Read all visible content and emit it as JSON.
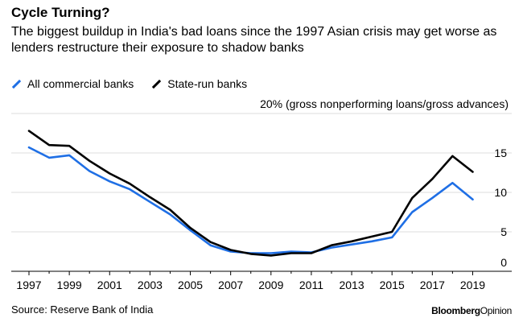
{
  "header": {
    "title": "Cycle Turning?",
    "subtitle": "The biggest buildup in India's bad loans since the 1997 Asian crisis may get worse as lenders restructure their exposure to shadow banks"
  },
  "footer": {
    "source": "Source: Reserve Bank of India",
    "brand_part1": "Bloomberg",
    "brand_part2": "Opinion"
  },
  "chart_data": {
    "type": "line",
    "title": "Cycle Turning?",
    "subtitle": "The biggest buildup in India's bad loans since the 1997 Asian crisis may get worse as lenders restructure their exposure to shadow banks",
    "ylabel": "20% (gross nonperforming loans/gross advances)",
    "ylim": [
      0,
      20
    ],
    "yticks": [
      0,
      5,
      10,
      15
    ],
    "xlim": [
      1997,
      2019.5
    ],
    "xticks": [
      1997,
      1999,
      2001,
      2003,
      2005,
      2007,
      2009,
      2011,
      2013,
      2015,
      2017,
      2019
    ],
    "grid": true,
    "legend_position": "top-left",
    "x": [
      1997,
      1998,
      1999,
      2000,
      2001,
      2002,
      2003,
      2004,
      2005,
      2006,
      2007,
      2008,
      2009,
      2010,
      2011,
      2012,
      2013,
      2014,
      2015,
      2016,
      2017,
      2018,
      2019
    ],
    "series": [
      {
        "name": "All commercial banks",
        "color": "#1f6fe5",
        "values": [
          15.7,
          14.4,
          14.7,
          12.7,
          11.4,
          10.4,
          8.8,
          7.2,
          5.2,
          3.3,
          2.5,
          2.3,
          2.3,
          2.5,
          2.4,
          3.0,
          3.4,
          3.8,
          4.3,
          7.5,
          9.3,
          11.2,
          9.1
        ]
      },
      {
        "name": "State-run banks",
        "color": "#000000",
        "values": [
          17.8,
          16.0,
          15.9,
          14.0,
          12.4,
          11.1,
          9.4,
          7.8,
          5.5,
          3.7,
          2.7,
          2.2,
          2.0,
          2.3,
          2.3,
          3.3,
          3.8,
          4.4,
          5.0,
          9.3,
          11.7,
          14.6,
          12.6
        ]
      }
    ]
  }
}
